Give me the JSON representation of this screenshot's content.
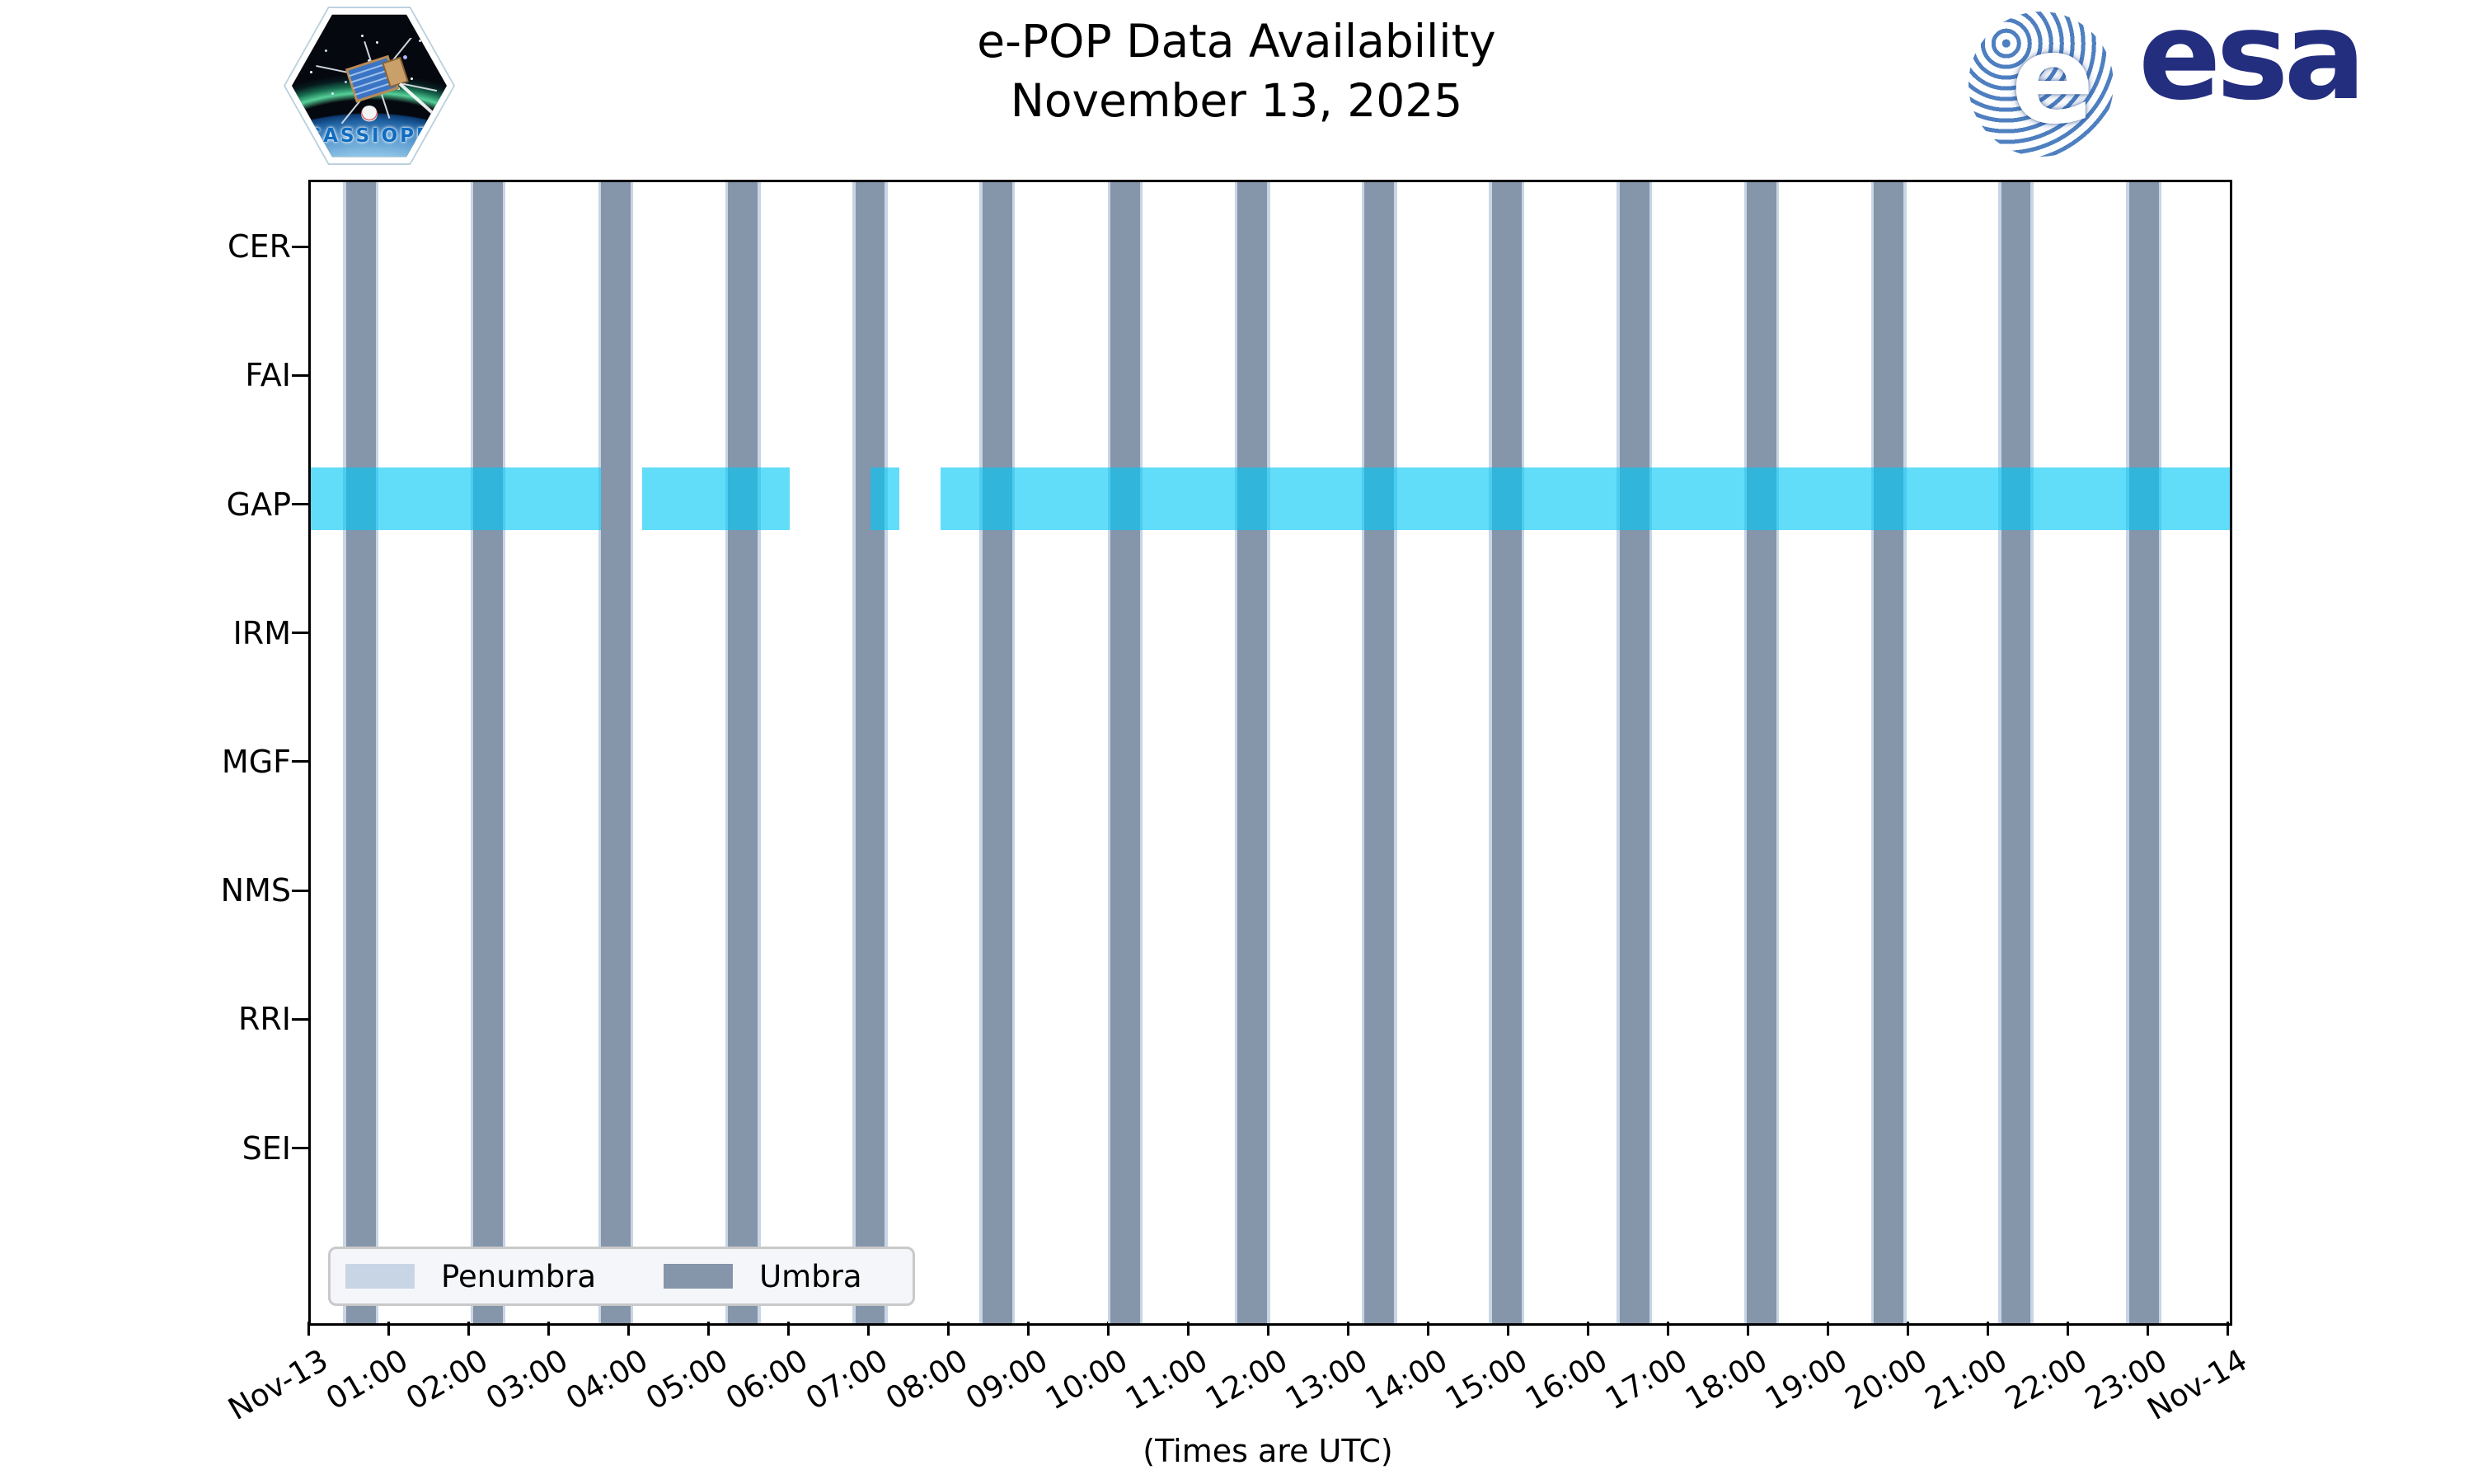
{
  "logos": {
    "cassiope": {
      "label": "CASSIOPE"
    },
    "esa": {
      "word": "esa",
      "globe_letter": "e"
    }
  },
  "title": {
    "line1": "e-POP Data Availability",
    "line2": "November 13, 2025"
  },
  "chart_data": {
    "type": "timeline",
    "title": "e-POP Data Availability",
    "subtitle": "November 13, 2025",
    "xlabel": "(Times are UTC)",
    "x_range_hours": [
      0,
      24
    ],
    "x_tick_labels": [
      "Nov-13",
      "01:00",
      "02:00",
      "03:00",
      "04:00",
      "05:00",
      "06:00",
      "07:00",
      "08:00",
      "09:00",
      "10:00",
      "11:00",
      "12:00",
      "13:00",
      "14:00",
      "15:00",
      "16:00",
      "17:00",
      "18:00",
      "19:00",
      "20:00",
      "21:00",
      "22:00",
      "23:00",
      "Nov-14"
    ],
    "categories": [
      "CER",
      "FAI",
      "GAP",
      "IRM",
      "MGF",
      "NMS",
      "RRI",
      "SEI"
    ],
    "grid": false,
    "legend": {
      "position": "lower left",
      "entries": [
        {
          "label": "Penumbra",
          "color": "#C8D5E5"
        },
        {
          "label": "Umbra",
          "color": "#8595AA"
        }
      ]
    },
    "umbra_intervals_hours": [
      [
        0.44,
        0.81
      ],
      [
        2.03,
        2.4
      ],
      [
        3.63,
        4.0
      ],
      [
        5.22,
        5.59
      ],
      [
        6.81,
        7.18
      ],
      [
        8.4,
        8.77
      ],
      [
        10.0,
        10.37
      ],
      [
        11.59,
        11.96
      ],
      [
        13.18,
        13.55
      ],
      [
        14.77,
        15.14
      ],
      [
        16.37,
        16.74
      ],
      [
        17.96,
        18.33
      ],
      [
        19.55,
        19.92
      ],
      [
        21.14,
        21.51
      ],
      [
        22.74,
        23.11
      ]
    ],
    "penumbra_edge_hours": 0.035,
    "availability": {
      "series": [
        {
          "category": "GAP",
          "color": "#00C8F7",
          "alpha": 0.62,
          "intervals_hours": [
            [
              0.0,
              3.63
            ],
            [
              4.14,
              5.99
            ],
            [
              7.0,
              7.36
            ],
            [
              7.88,
              24.0
            ]
          ]
        }
      ]
    },
    "colors": {
      "umbra": "#8595AA",
      "penumbra": "#C8D5E5",
      "availability_gap": "#00C8F7"
    }
  }
}
